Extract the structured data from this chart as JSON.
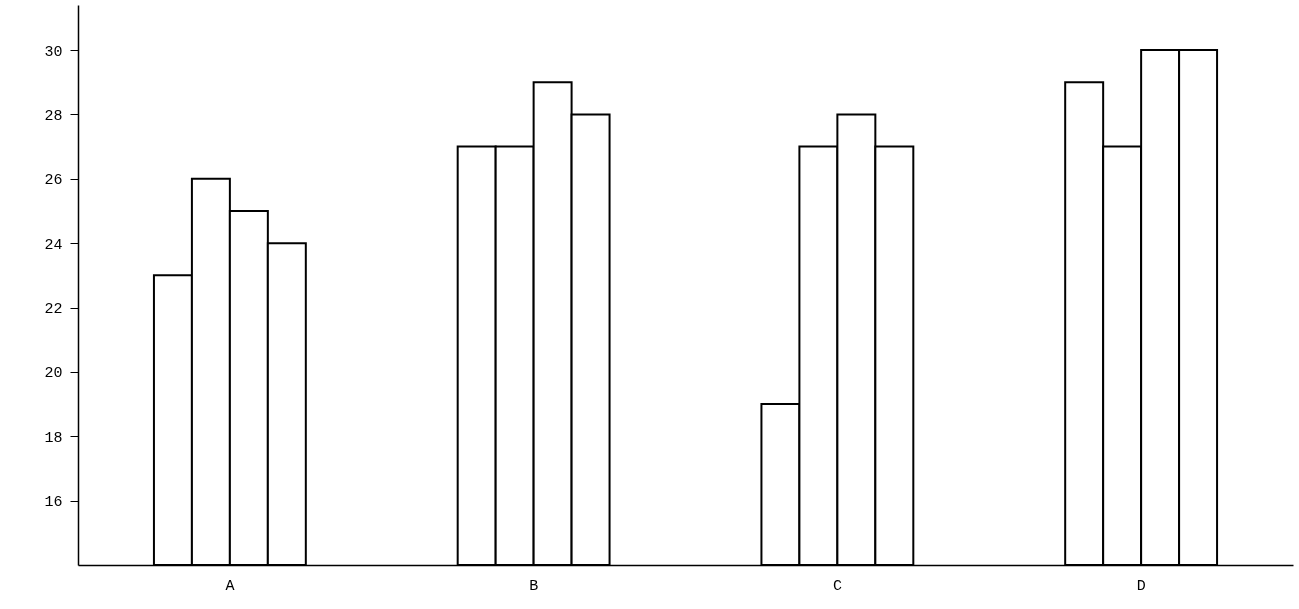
{
  "chart_data": {
    "type": "bar",
    "categories": [
      "A",
      "B",
      "C",
      "D"
    ],
    "series": [
      {
        "color": "#ffffff",
        "values": [
          23,
          27,
          19,
          29
        ]
      },
      {
        "color": "#ffffff",
        "values": [
          26,
          27,
          27,
          27
        ]
      },
      {
        "color": "#ffffff",
        "values": [
          25,
          29,
          28,
          30
        ]
      },
      {
        "color": "#ffffff",
        "values": [
          24,
          28,
          27,
          30
        ]
      }
    ],
    "ylim": [
      14,
      31.4
    ],
    "yticks": [
      16,
      18,
      20,
      22,
      24,
      26,
      28,
      30
    ]
  }
}
